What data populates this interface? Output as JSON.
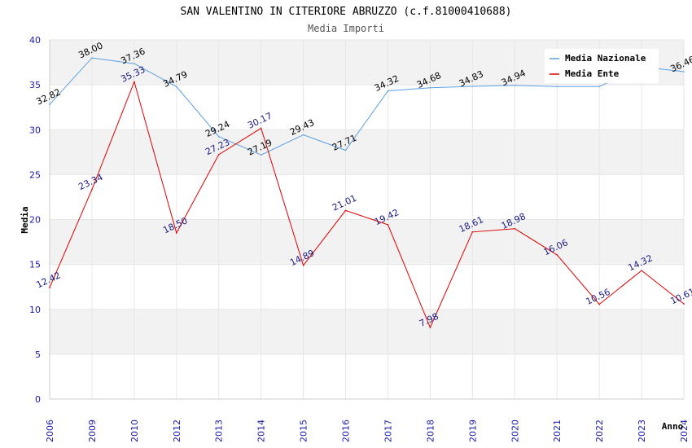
{
  "chart_data": {
    "type": "line",
    "title": "SAN VALENTINO IN CITERIORE ABRUZZO (c.f.81000410688)",
    "subtitle": "Media Importi",
    "xlabel": "Anno",
    "ylabel": "Media",
    "ylim": [
      0,
      40
    ],
    "yticks": [
      "0",
      "5",
      "10",
      "15",
      "20",
      "25",
      "30",
      "35",
      "40"
    ],
    "categories": [
      "2006",
      "2009",
      "2010",
      "2012",
      "2013",
      "2014",
      "2015",
      "2016",
      "2017",
      "2018",
      "2019",
      "2020",
      "2021",
      "2022",
      "2023",
      "2024"
    ],
    "legend_position": "top-right",
    "series": [
      {
        "name": "Media Nazionale",
        "color": "#5aa0e0",
        "values": [
          32.82,
          38.0,
          37.36,
          34.79,
          29.24,
          27.19,
          29.43,
          27.71,
          34.32,
          34.68,
          34.83,
          34.94,
          34.8,
          34.8,
          37.0,
          36.46
        ],
        "labels": [
          "32.82",
          "38.00",
          "37.36",
          "34.79",
          "29.24",
          "27.19",
          "29.43",
          "27.71",
          "34.32",
          "34.68",
          "34.83",
          "34.94",
          "",
          "",
          "",
          "36.46"
        ]
      },
      {
        "name": "Media Ente",
        "color": "#e00000",
        "values": [
          12.42,
          23.34,
          35.33,
          18.5,
          27.23,
          30.17,
          14.89,
          21.01,
          19.42,
          7.98,
          18.61,
          18.98,
          16.06,
          10.56,
          14.32,
          10.61
        ],
        "labels": [
          "12.42",
          "23.34",
          "35.33",
          "18.50",
          "27.23",
          "30.17",
          "14.89",
          "21.01",
          "19.42",
          "7.98",
          "18.61",
          "18.98",
          "16.06",
          "10.56",
          "14.32",
          "10.61"
        ]
      }
    ]
  }
}
